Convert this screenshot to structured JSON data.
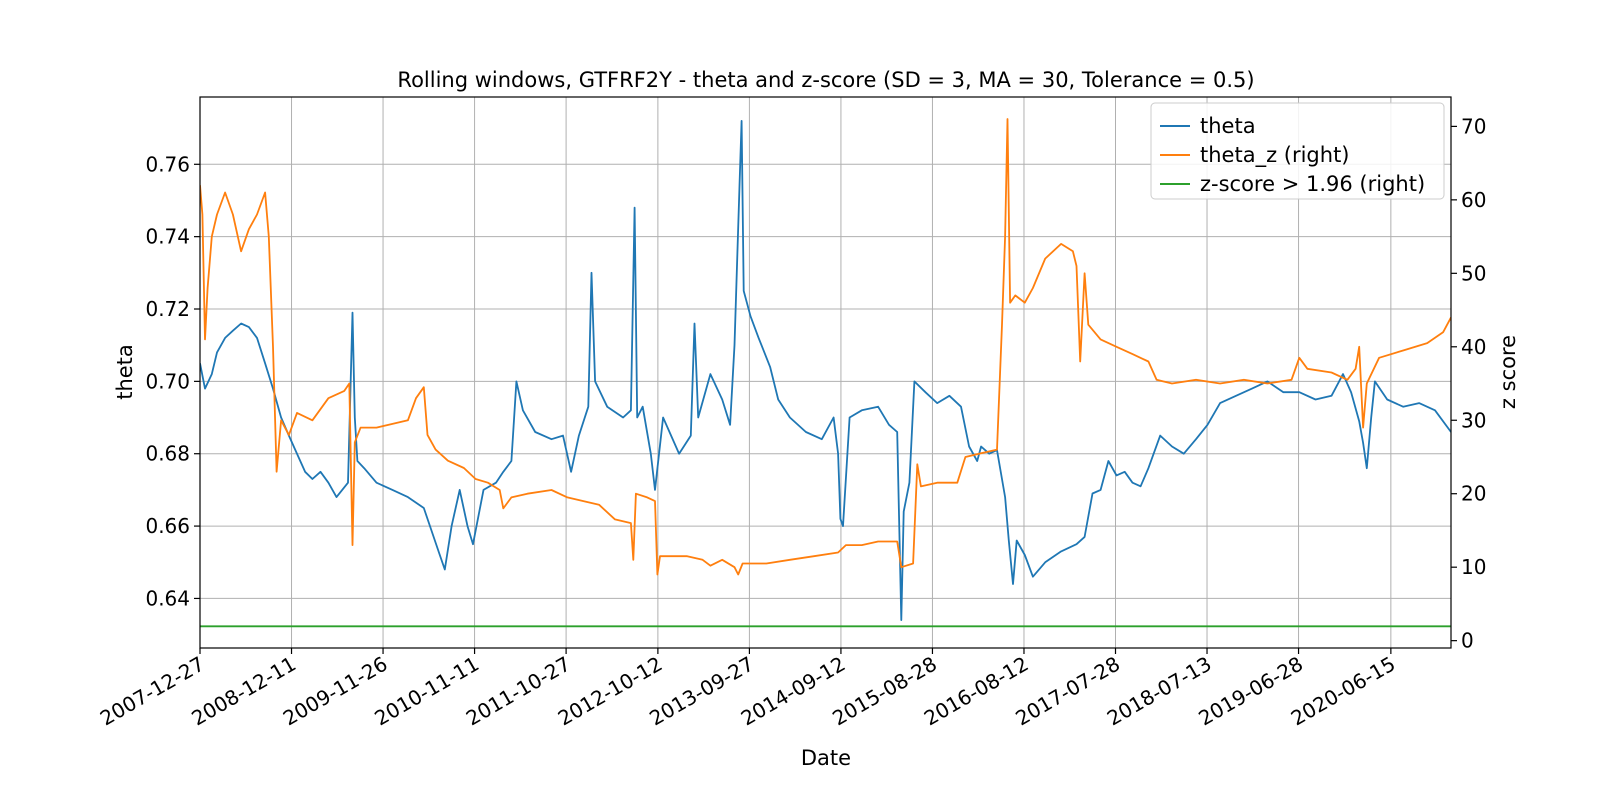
{
  "chart_data": {
    "type": "line",
    "title": "Rolling windows, GTFRF2Y - theta and z-score (SD = 3, MA = 30, Tolerance  = 0.5)",
    "xlabel": "Date",
    "ylabel_left": "theta",
    "ylabel_right": "z score",
    "x_range": [
      "2007-12-27",
      "2021-01-31"
    ],
    "ylim_left": [
      0.6263,
      0.7786
    ],
    "ylim_right": [
      -1.0,
      74.0
    ],
    "grid": true,
    "legend_position": "top-right",
    "x_tick_labels": [
      "2007-12-27",
      "2008-12-11",
      "2009-11-26",
      "2010-11-11",
      "2011-10-27",
      "2012-10-12",
      "2013-09-27",
      "2014-09-12",
      "2015-08-28",
      "2016-08-12",
      "2017-07-28",
      "2018-07-13",
      "2019-06-28",
      "2020-06-15"
    ],
    "y_left_ticks": [
      0.64,
      0.66,
      0.68,
      0.7,
      0.72,
      0.74,
      0.76
    ],
    "y_left_tick_labels": [
      "0.64",
      "0.66",
      "0.68",
      "0.70",
      "0.72",
      "0.74",
      "0.76"
    ],
    "y_right_ticks": [
      0,
      10,
      20,
      30,
      40,
      50,
      60,
      70
    ],
    "y_right_tick_labels": [
      "0",
      "10",
      "20",
      "30",
      "40",
      "50",
      "60",
      "70"
    ],
    "colors": {
      "theta": "#1f77b4",
      "theta_z": "#ff7f0e",
      "threshold": "#2ca02c",
      "grid": "#b0b0b0"
    },
    "series": [
      {
        "name": "theta",
        "axis": "left",
        "color": "#1f77b4",
        "points": [
          [
            "2007-12-27",
            0.705
          ],
          [
            "2008-01-15",
            0.698
          ],
          [
            "2008-02-10",
            0.702
          ],
          [
            "2008-03-01",
            0.708
          ],
          [
            "2008-04-01",
            0.712
          ],
          [
            "2008-05-01",
            0.714
          ],
          [
            "2008-06-01",
            0.716
          ],
          [
            "2008-07-01",
            0.715
          ],
          [
            "2008-08-01",
            0.712
          ],
          [
            "2008-09-01",
            0.705
          ],
          [
            "2008-10-01",
            0.698
          ],
          [
            "2008-11-01",
            0.69
          ],
          [
            "2008-12-01",
            0.685
          ],
          [
            "2009-01-01",
            0.68
          ],
          [
            "2009-02-01",
            0.675
          ],
          [
            "2009-03-01",
            0.673
          ],
          [
            "2009-04-01",
            0.675
          ],
          [
            "2009-05-01",
            0.672
          ],
          [
            "2009-06-01",
            0.668
          ],
          [
            "2009-07-15",
            0.672
          ],
          [
            "2009-08-01",
            0.719
          ],
          [
            "2009-08-10",
            0.69
          ],
          [
            "2009-08-20",
            0.678
          ],
          [
            "2009-09-15",
            0.676
          ],
          [
            "2009-11-01",
            0.672
          ],
          [
            "2010-01-01",
            0.67
          ],
          [
            "2010-03-01",
            0.668
          ],
          [
            "2010-05-01",
            0.665
          ],
          [
            "2010-07-01",
            0.652
          ],
          [
            "2010-07-20",
            0.648
          ],
          [
            "2010-08-15",
            0.66
          ],
          [
            "2010-09-15",
            0.67
          ],
          [
            "2010-10-15",
            0.66
          ],
          [
            "2010-11-05",
            0.655
          ],
          [
            "2010-12-15",
            0.67
          ],
          [
            "2011-02-01",
            0.672
          ],
          [
            "2011-03-01",
            0.675
          ],
          [
            "2011-04-01",
            0.678
          ],
          [
            "2011-04-20",
            0.7
          ],
          [
            "2011-05-15",
            0.692
          ],
          [
            "2011-07-01",
            0.686
          ],
          [
            "2011-09-01",
            0.684
          ],
          [
            "2011-10-15",
            0.685
          ],
          [
            "2011-11-15",
            0.675
          ],
          [
            "2011-12-15",
            0.685
          ],
          [
            "2012-01-20",
            0.693
          ],
          [
            "2012-02-01",
            0.73
          ],
          [
            "2012-02-15",
            0.7
          ],
          [
            "2012-04-01",
            0.693
          ],
          [
            "2012-06-01",
            0.69
          ],
          [
            "2012-07-01",
            0.692
          ],
          [
            "2012-07-15",
            0.748
          ],
          [
            "2012-07-25",
            0.69
          ],
          [
            "2012-08-15",
            0.693
          ],
          [
            "2012-09-15",
            0.68
          ],
          [
            "2012-10-01",
            0.67
          ],
          [
            "2012-11-01",
            0.69
          ],
          [
            "2013-01-01",
            0.68
          ],
          [
            "2013-02-15",
            0.685
          ],
          [
            "2013-03-01",
            0.716
          ],
          [
            "2013-03-15",
            0.69
          ],
          [
            "2013-05-01",
            0.702
          ],
          [
            "2013-06-15",
            0.695
          ],
          [
            "2013-07-15",
            0.688
          ],
          [
            "2013-08-01",
            0.71
          ],
          [
            "2013-08-20",
            0.754
          ],
          [
            "2013-08-28",
            0.772
          ],
          [
            "2013-09-05",
            0.725
          ],
          [
            "2013-10-01",
            0.718
          ],
          [
            "2013-11-01",
            0.712
          ],
          [
            "2013-12-15",
            0.704
          ],
          [
            "2014-01-15",
            0.695
          ],
          [
            "2014-03-01",
            0.69
          ],
          [
            "2014-05-01",
            0.686
          ],
          [
            "2014-07-01",
            0.684
          ],
          [
            "2014-08-15",
            0.69
          ],
          [
            "2014-09-01",
            0.68
          ],
          [
            "2014-09-10",
            0.662
          ],
          [
            "2014-09-20",
            0.66
          ],
          [
            "2014-10-15",
            0.69
          ],
          [
            "2014-12-01",
            0.692
          ],
          [
            "2015-02-01",
            0.693
          ],
          [
            "2015-03-15",
            0.688
          ],
          [
            "2015-04-15",
            0.686
          ],
          [
            "2015-05-01",
            0.634
          ],
          [
            "2015-05-10",
            0.664
          ],
          [
            "2015-06-01",
            0.672
          ],
          [
            "2015-06-20",
            0.7
          ],
          [
            "2015-08-01",
            0.697
          ],
          [
            "2015-09-15",
            0.694
          ],
          [
            "2015-11-01",
            0.696
          ],
          [
            "2015-12-15",
            0.693
          ],
          [
            "2016-01-15",
            0.682
          ],
          [
            "2016-02-15",
            0.678
          ],
          [
            "2016-03-01",
            0.682
          ],
          [
            "2016-04-01",
            0.68
          ],
          [
            "2016-05-01",
            0.681
          ],
          [
            "2016-06-01",
            0.668
          ],
          [
            "2016-06-15",
            0.656
          ],
          [
            "2016-07-01",
            0.644
          ],
          [
            "2016-07-15",
            0.656
          ],
          [
            "2016-08-15",
            0.652
          ],
          [
            "2016-09-15",
            0.646
          ],
          [
            "2016-11-01",
            0.65
          ],
          [
            "2017-01-01",
            0.653
          ],
          [
            "2017-03-01",
            0.655
          ],
          [
            "2017-04-01",
            0.657
          ],
          [
            "2017-05-01",
            0.669
          ],
          [
            "2017-06-01",
            0.67
          ],
          [
            "2017-07-01",
            0.678
          ],
          [
            "2017-08-01",
            0.674
          ],
          [
            "2017-09-01",
            0.675
          ],
          [
            "2017-10-01",
            0.672
          ],
          [
            "2017-11-01",
            0.671
          ],
          [
            "2017-12-01",
            0.676
          ],
          [
            "2018-01-15",
            0.685
          ],
          [
            "2018-03-01",
            0.682
          ],
          [
            "2018-04-15",
            0.68
          ],
          [
            "2018-06-01",
            0.684
          ],
          [
            "2018-07-15",
            0.688
          ],
          [
            "2018-09-01",
            0.694
          ],
          [
            "2018-11-01",
            0.696
          ],
          [
            "2019-01-01",
            0.698
          ],
          [
            "2019-03-01",
            0.7
          ],
          [
            "2019-05-01",
            0.697
          ],
          [
            "2019-07-01",
            0.697
          ],
          [
            "2019-09-01",
            0.695
          ],
          [
            "2019-11-01",
            0.696
          ],
          [
            "2019-12-15",
            0.702
          ],
          [
            "2020-01-15",
            0.697
          ],
          [
            "2020-02-15",
            0.689
          ],
          [
            "2020-03-01",
            0.683
          ],
          [
            "2020-03-15",
            0.676
          ],
          [
            "2020-04-01",
            0.69
          ],
          [
            "2020-04-15",
            0.7
          ],
          [
            "2020-06-01",
            0.695
          ],
          [
            "2020-08-01",
            0.693
          ],
          [
            "2020-10-01",
            0.694
          ],
          [
            "2020-12-01",
            0.692
          ],
          [
            "2021-01-31",
            0.686
          ]
        ]
      },
      {
        "name": "theta_z (right)",
        "axis": "right",
        "color": "#ff7f0e",
        "points": [
          [
            "2007-12-27",
            62.0
          ],
          [
            "2008-01-05",
            58.0
          ],
          [
            "2008-01-15",
            41.0
          ],
          [
            "2008-01-25",
            48.0
          ],
          [
            "2008-02-10",
            55.0
          ],
          [
            "2008-03-01",
            58.0
          ],
          [
            "2008-04-01",
            61.0
          ],
          [
            "2008-05-01",
            58.0
          ],
          [
            "2008-06-01",
            53.0
          ],
          [
            "2008-07-01",
            56.0
          ],
          [
            "2008-08-01",
            58.0
          ],
          [
            "2008-09-01",
            61.0
          ],
          [
            "2008-09-15",
            55.0
          ],
          [
            "2008-10-01",
            40.0
          ],
          [
            "2008-10-15",
            23.0
          ],
          [
            "2008-11-01",
            30.0
          ],
          [
            "2008-12-01",
            28.0
          ],
          [
            "2009-01-01",
            31.0
          ],
          [
            "2009-03-01",
            30.0
          ],
          [
            "2009-05-01",
            33.0
          ],
          [
            "2009-07-01",
            34.0
          ],
          [
            "2009-07-20",
            35.0
          ],
          [
            "2009-08-01",
            13.0
          ],
          [
            "2009-08-10",
            27.0
          ],
          [
            "2009-09-01",
            29.0
          ],
          [
            "2009-11-01",
            29.0
          ],
          [
            "2010-01-01",
            29.5
          ],
          [
            "2010-03-01",
            30.0
          ],
          [
            "2010-04-01",
            33.0
          ],
          [
            "2010-05-01",
            34.5
          ],
          [
            "2010-05-15",
            28.0
          ],
          [
            "2010-06-15",
            26.0
          ],
          [
            "2010-08-01",
            24.5
          ],
          [
            "2010-10-01",
            23.5
          ],
          [
            "2010-11-15",
            22.0
          ],
          [
            "2011-01-01",
            21.5
          ],
          [
            "2011-02-15",
            20.5
          ],
          [
            "2011-03-01",
            18.0
          ],
          [
            "2011-04-01",
            19.5
          ],
          [
            "2011-06-01",
            20.0
          ],
          [
            "2011-09-01",
            20.5
          ],
          [
            "2011-11-01",
            19.5
          ],
          [
            "2012-01-01",
            19.0
          ],
          [
            "2012-03-01",
            18.5
          ],
          [
            "2012-05-01",
            16.5
          ],
          [
            "2012-07-01",
            16.0
          ],
          [
            "2012-07-10",
            11.0
          ],
          [
            "2012-07-20",
            20.0
          ],
          [
            "2012-09-01",
            19.5
          ],
          [
            "2012-10-01",
            19.0
          ],
          [
            "2012-10-10",
            9.0
          ],
          [
            "2012-10-20",
            11.5
          ],
          [
            "2013-02-01",
            11.5
          ],
          [
            "2013-04-01",
            11.0
          ],
          [
            "2013-05-01",
            10.2
          ],
          [
            "2013-06-15",
            11.0
          ],
          [
            "2013-08-01",
            10.0
          ],
          [
            "2013-08-15",
            9.0
          ],
          [
            "2013-09-01",
            10.5
          ],
          [
            "2013-12-01",
            10.5
          ],
          [
            "2014-03-01",
            11.0
          ],
          [
            "2014-06-01",
            11.5
          ],
          [
            "2014-09-01",
            12.0
          ],
          [
            "2014-10-01",
            13.0
          ],
          [
            "2014-12-01",
            13.0
          ],
          [
            "2015-02-01",
            13.5
          ],
          [
            "2015-04-15",
            13.5
          ],
          [
            "2015-05-01",
            10.0
          ],
          [
            "2015-06-15",
            10.5
          ],
          [
            "2015-07-01",
            24.0
          ],
          [
            "2015-07-15",
            21.0
          ],
          [
            "2015-09-15",
            21.5
          ],
          [
            "2015-12-01",
            21.5
          ],
          [
            "2016-01-01",
            25.0
          ],
          [
            "2016-03-01",
            25.5
          ],
          [
            "2016-05-01",
            26.0
          ],
          [
            "2016-05-20",
            43.0
          ],
          [
            "2016-06-01",
            55.0
          ],
          [
            "2016-06-10",
            71.0
          ],
          [
            "2016-06-20",
            46.0
          ],
          [
            "2016-07-10",
            47.0
          ],
          [
            "2016-08-15",
            46.0
          ],
          [
            "2016-09-15",
            48.0
          ],
          [
            "2016-11-01",
            52.0
          ],
          [
            "2017-01-01",
            54.0
          ],
          [
            "2017-02-15",
            53.0
          ],
          [
            "2017-03-01",
            51.0
          ],
          [
            "2017-03-15",
            38.0
          ],
          [
            "2017-04-01",
            50.0
          ],
          [
            "2017-04-15",
            43.0
          ],
          [
            "2017-06-01",
            41.0
          ],
          [
            "2017-08-01",
            40.0
          ],
          [
            "2017-10-01",
            39.0
          ],
          [
            "2017-12-01",
            38.0
          ],
          [
            "2018-01-01",
            35.5
          ],
          [
            "2018-03-01",
            35.0
          ],
          [
            "2018-06-01",
            35.5
          ],
          [
            "2018-09-01",
            35.0
          ],
          [
            "2018-12-01",
            35.5
          ],
          [
            "2019-03-01",
            35.0
          ],
          [
            "2019-06-01",
            35.5
          ],
          [
            "2019-07-01",
            38.5
          ],
          [
            "2019-08-01",
            37.0
          ],
          [
            "2019-11-01",
            36.5
          ],
          [
            "2020-01-01",
            35.5
          ],
          [
            "2020-02-01",
            37.0
          ],
          [
            "2020-02-15",
            40.0
          ],
          [
            "2020-03-01",
            29.0
          ],
          [
            "2020-03-15",
            35.0
          ],
          [
            "2020-05-01",
            38.5
          ],
          [
            "2020-08-01",
            39.5
          ],
          [
            "2020-11-01",
            40.5
          ],
          [
            "2021-01-01",
            42.0
          ],
          [
            "2021-01-31",
            44.0
          ]
        ]
      },
      {
        "name": "z-score > 1.96 (right)",
        "axis": "right",
        "color": "#2ca02c",
        "points": [
          [
            "2007-12-27",
            1.96
          ],
          [
            "2021-01-31",
            1.96
          ]
        ]
      }
    ]
  }
}
